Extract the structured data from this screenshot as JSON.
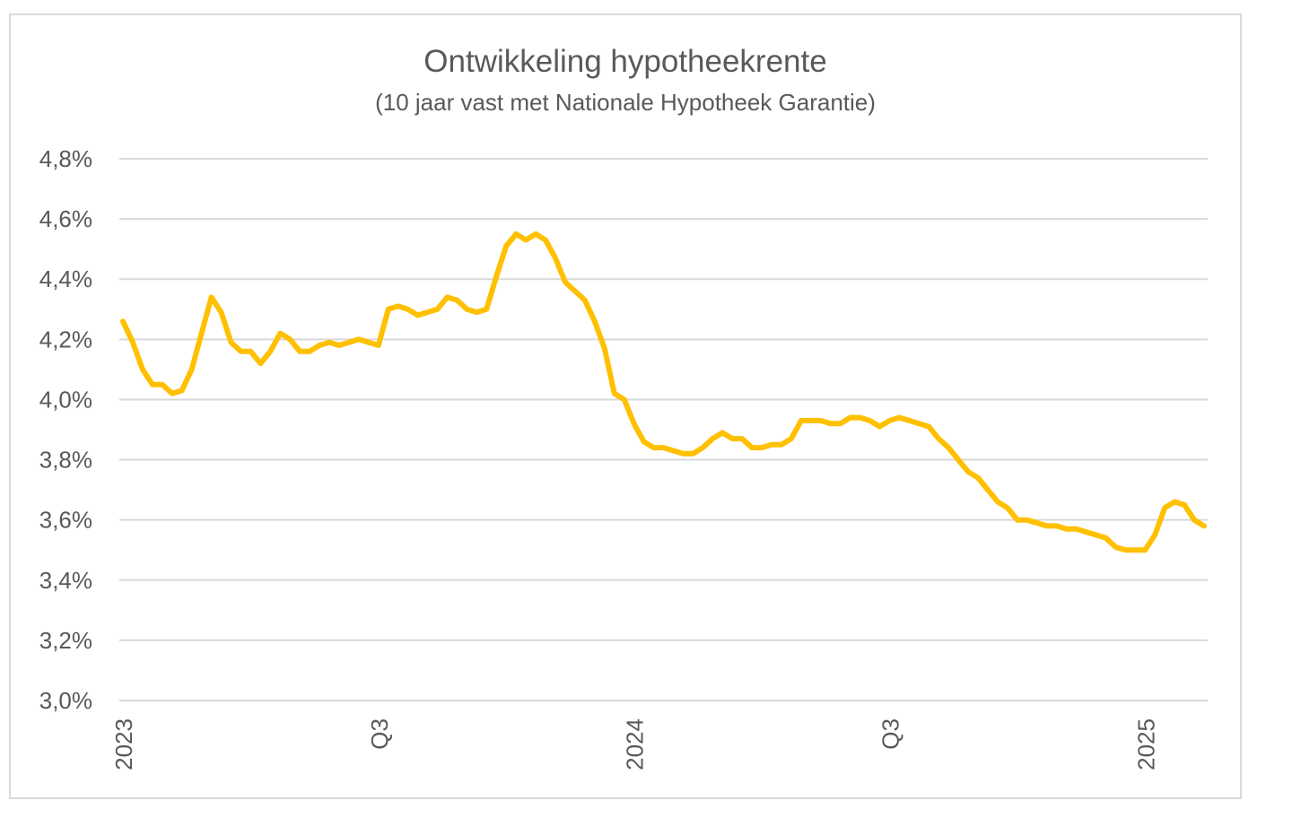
{
  "chart_data": {
    "type": "line",
    "title": "Ontwikkeling hypotheekrente",
    "subtitle": "(10 jaar vast met Nationale Hypotheek Garantie)",
    "xlabel": "",
    "ylabel": "",
    "ylim": [
      3.0,
      4.8
    ],
    "yticks": [
      4.8,
      4.6,
      4.4,
      4.2,
      4.0,
      3.8,
      3.6,
      3.4,
      3.2,
      3.0
    ],
    "ytick_labels": [
      "4,8%",
      "4,6%",
      "4,4%",
      "4,2%",
      "4,0%",
      "3,8%",
      "3,6%",
      "3,4%",
      "3,2%",
      "3,0%"
    ],
    "x_tick_labels": [
      {
        "label": "2023",
        "week": 0
      },
      {
        "label": "Q3",
        "week": 26
      },
      {
        "label": "2024",
        "week": 52
      },
      {
        "label": "Q3",
        "week": 78
      },
      {
        "label": "2025",
        "week": 104
      }
    ],
    "grid": true,
    "line_color": "#FFC000",
    "series": [
      {
        "values": [
          4.26,
          4.19,
          4.1,
          4.05,
          4.05,
          4.02,
          4.03,
          4.1,
          4.22,
          4.34,
          4.29,
          4.19,
          4.16,
          4.16,
          4.12,
          4.16,
          4.22,
          4.2,
          4.16,
          4.16,
          4.18,
          4.19,
          4.18,
          4.19,
          4.2,
          4.19,
          4.18,
          4.3,
          4.31,
          4.3,
          4.28,
          4.29,
          4.3,
          4.34,
          4.33,
          4.3,
          4.29,
          4.3,
          4.41,
          4.51,
          4.55,
          4.53,
          4.55,
          4.53,
          4.47,
          4.39,
          4.36,
          4.33,
          4.26,
          4.17,
          4.02,
          4.0,
          3.92,
          3.86,
          3.84,
          3.84,
          3.83,
          3.82,
          3.82,
          3.84,
          3.87,
          3.89,
          3.87,
          3.87,
          3.84,
          3.84,
          3.85,
          3.85,
          3.87,
          3.93,
          3.93,
          3.93,
          3.92,
          3.92,
          3.94,
          3.94,
          3.93,
          3.91,
          3.93,
          3.94,
          3.93,
          3.92,
          3.91,
          3.87,
          3.84,
          3.8,
          3.76,
          3.74,
          3.7,
          3.66,
          3.64,
          3.6,
          3.6,
          3.59,
          3.58,
          3.58,
          3.57,
          3.57,
          3.56,
          3.55,
          3.54,
          3.51,
          3.5,
          3.5,
          3.5,
          3.55,
          3.64,
          3.66,
          3.65,
          3.6,
          3.58
        ]
      }
    ]
  }
}
